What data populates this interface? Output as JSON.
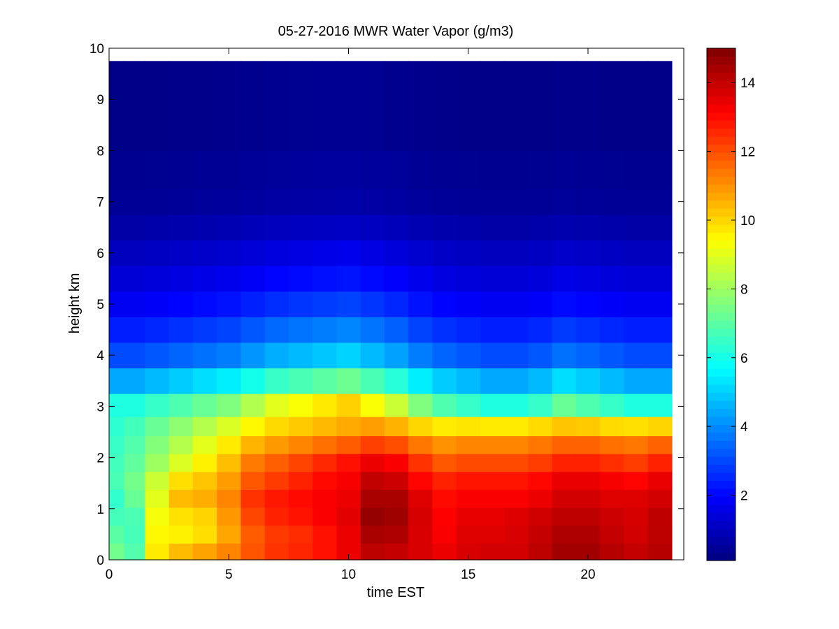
{
  "chart_data": {
    "type": "heatmap",
    "title": "05-27-2016 MWR Water Vapor (g/m3)",
    "xlabel": "time EST",
    "ylabel": "height km",
    "xlim": [
      0,
      24.0
    ],
    "ylim": [
      0,
      10
    ],
    "xticks": [
      0,
      5,
      10,
      15,
      20
    ],
    "yticks": [
      0,
      1,
      2,
      3,
      4,
      5,
      6,
      7,
      8,
      9,
      10
    ],
    "colorbar": {
      "colormap": "jet",
      "range": [
        0.1,
        15
      ],
      "ticks": [
        2,
        4,
        6,
        8,
        10,
        12,
        14
      ]
    },
    "data_extent": {
      "x": [
        0,
        23.5
      ],
      "y": [
        0,
        9.75
      ]
    },
    "time_bins_est": [
      0.25,
      1.0,
      2.0,
      3.0,
      4.0,
      5.0,
      6.0,
      7.0,
      8.0,
      9.0,
      10.0,
      11.0,
      12.0,
      13.0,
      14.0,
      15.0,
      16.0,
      17.0,
      18.0,
      19.0,
      20.0,
      21.0,
      22.0,
      23.0
    ],
    "height_km": [
      0.15,
      0.5,
      0.85,
      1.2,
      1.55,
      1.9,
      2.25,
      2.6,
      3.0,
      3.5,
      4.0,
      4.5,
      5.0,
      5.5,
      6.0,
      6.5,
      7.0,
      7.5,
      8.5
    ],
    "profile_values": {
      "z_anchors_km": [
        0,
        0.3,
        0.7,
        1.2,
        1.6,
        2.0,
        2.5,
        3.0,
        3.5,
        4.0,
        4.5,
        5.0,
        5.5,
        6.0,
        6.5,
        7.0,
        8.0,
        9.75
      ],
      "low_level_by_time": [
        [
          7.5,
          7.0,
          9.8,
          11.2,
          11.5,
          11.8,
          12.2,
          12.8,
          13.0,
          13.2,
          13.6,
          14.2,
          14.0,
          13.8,
          13.6,
          13.8,
          14.0,
          14.0,
          14.2,
          14.6,
          14.6,
          14.4,
          14.2,
          14.4
        ],
        [
          7.2,
          6.8,
          9.6,
          9.6,
          10.0,
          10.6,
          11.6,
          12.0,
          12.2,
          12.6,
          13.2,
          14.0,
          14.0,
          13.6,
          13.2,
          13.6,
          13.6,
          13.6,
          14.0,
          14.4,
          14.4,
          14.0,
          13.8,
          14.0
        ],
        [
          6.8,
          6.6,
          9.4,
          9.6,
          9.8,
          10.8,
          12.0,
          12.6,
          12.8,
          13.2,
          13.6,
          14.8,
          14.6,
          13.8,
          13.2,
          13.6,
          13.6,
          13.8,
          14.0,
          14.2,
          14.2,
          14.0,
          13.8,
          14.2
        ],
        [
          6.4,
          7.2,
          9.0,
          10.4,
          10.6,
          11.2,
          12.4,
          12.8,
          13.0,
          13.2,
          13.4,
          14.4,
          14.4,
          13.6,
          13.0,
          13.2,
          13.2,
          13.2,
          13.4,
          13.8,
          13.8,
          13.6,
          13.6,
          13.8
        ],
        [
          6.8,
          7.4,
          8.6,
          9.8,
          10.2,
          10.8,
          11.8,
          12.2,
          12.6,
          13.0,
          13.2,
          14.0,
          13.8,
          13.0,
          12.6,
          12.8,
          12.8,
          12.8,
          13.0,
          13.4,
          13.4,
          13.2,
          13.0,
          13.4
        ],
        [
          6.6,
          7.0,
          7.8,
          8.6,
          9.4,
          10.2,
          11.2,
          11.6,
          12.0,
          12.4,
          12.8,
          13.2,
          13.0,
          12.2,
          11.6,
          11.8,
          11.8,
          11.8,
          12.0,
          12.4,
          12.4,
          12.2,
          12.0,
          12.4
        ],
        [
          6.4,
          6.8,
          7.4,
          8.0,
          8.6,
          9.2,
          9.8,
          10.2,
          10.4,
          10.6,
          10.8,
          11.2,
          11.0,
          10.6,
          10.4,
          10.6,
          10.6,
          10.6,
          10.8,
          11.0,
          11.0,
          10.8,
          10.8,
          11.0
        ]
      ],
      "upper_level_by_height": [
        7.2,
        5.2,
        3.6,
        2.8,
        2.1,
        1.6,
        1.2,
        0.8,
        0.5,
        0.3,
        0.2
      ],
      "upper_time_modulation": [
        0.85,
        0.85,
        0.9,
        0.95,
        1.0,
        1.05,
        1.15,
        1.25,
        1.3,
        1.35,
        1.4,
        1.3,
        1.2,
        1.05,
        0.95,
        0.9,
        0.85,
        0.85,
        0.9,
        1.0,
        0.95,
        0.9,
        0.85,
        0.85
      ]
    }
  }
}
